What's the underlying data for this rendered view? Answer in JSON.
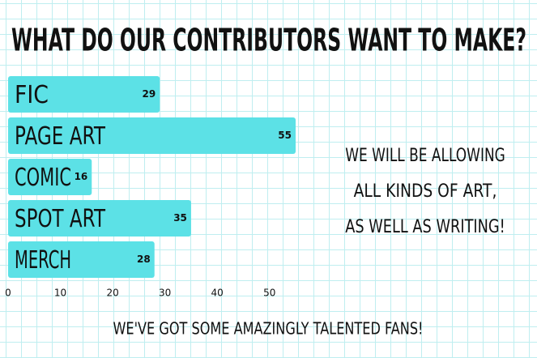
{
  "chart_data": {
    "type": "hbar",
    "title": "WHAT DO OUR CONTRIBUTORS WANT TO MAKE?",
    "categories": [
      "FIC",
      "PAGE ART",
      "COMIC",
      "SPOT ART",
      "MERCH"
    ],
    "values": [
      29,
      55,
      16,
      35,
      28
    ],
    "color": "#5ce1e6",
    "xlim": [
      0,
      55
    ],
    "xticks": [
      0,
      10,
      20,
      30,
      40,
      50
    ],
    "annotations": [
      "WE WILL BE ALLOWING",
      "ALL KINDS OF ART,",
      "AS WELL AS WRITING!"
    ],
    "caption": "WE'VE GOT SOME AMAZINGLY TALENTED FANS!"
  }
}
